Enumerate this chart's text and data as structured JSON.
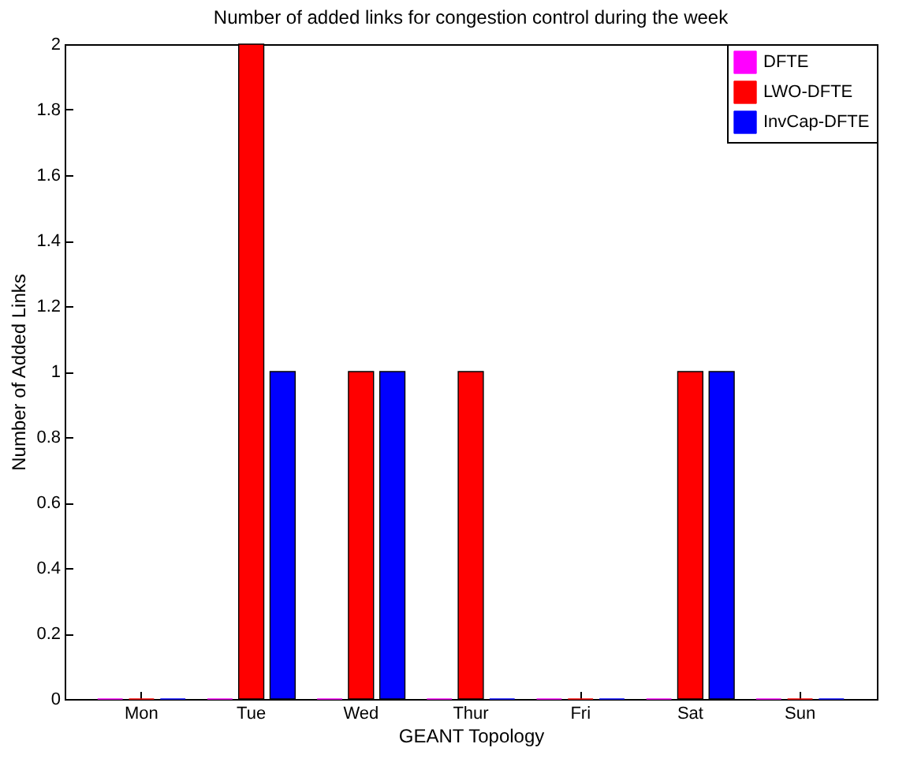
{
  "chart_data": {
    "type": "bar",
    "title": "Number of added links for congestion control during the week",
    "xlabel": "GEANT Topology",
    "ylabel": "Number of Added Links",
    "categories": [
      "Mon",
      "Tue",
      "Wed",
      "Thur",
      "Fri",
      "Sat",
      "Sun"
    ],
    "series": [
      {
        "name": "DFTE",
        "color": "#ff00ff",
        "values": [
          0,
          0,
          0,
          0,
          0,
          0,
          0
        ]
      },
      {
        "name": "LWO-DFTE",
        "color": "#ff0000",
        "values": [
          0,
          2,
          1,
          1,
          0,
          1,
          0
        ]
      },
      {
        "name": "InvCap-DFTE",
        "color": "#0000ff",
        "values": [
          0,
          1,
          1,
          0,
          0,
          1,
          0
        ]
      }
    ],
    "ylim": [
      0,
      2
    ],
    "yticks": [
      0,
      0.2,
      0.4,
      0.6,
      0.8,
      1,
      1.2,
      1.4,
      1.6,
      1.8,
      2
    ],
    "legend": "top right"
  }
}
